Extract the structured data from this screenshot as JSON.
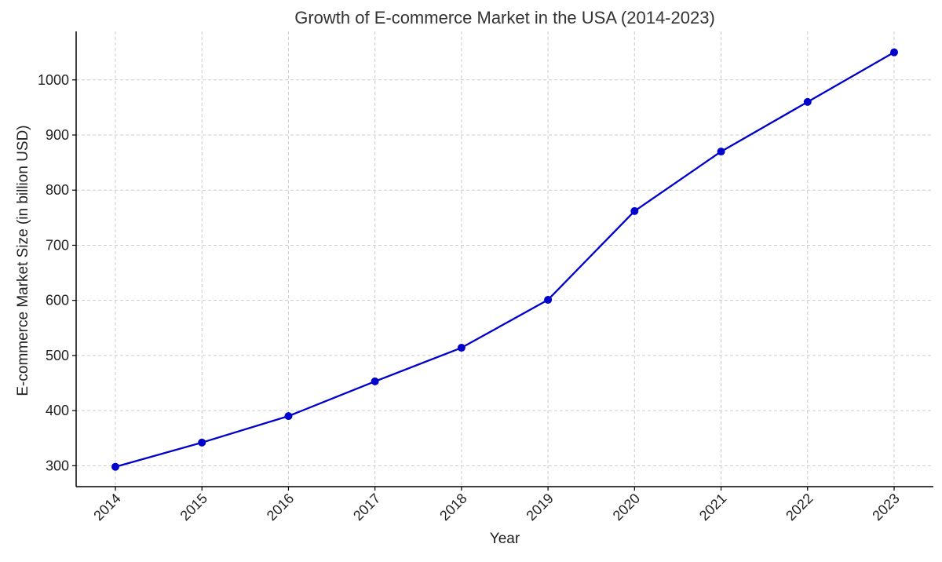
{
  "chart_data": {
    "type": "line",
    "title": "Growth of E-commerce Market in the USA (2014-2023)",
    "xlabel": "Year",
    "ylabel": "E-commerce Market Size (in billion USD)",
    "x": [
      "2014",
      "2015",
      "2016",
      "2017",
      "2018",
      "2019",
      "2020",
      "2021",
      "2022",
      "2023"
    ],
    "series": [
      {
        "values": [
          298,
          342,
          390,
          453,
          514,
          601,
          762,
          870,
          960,
          1050
        ],
        "color": "#0000cc"
      }
    ],
    "yticks": [
      300,
      400,
      500,
      600,
      700,
      800,
      900,
      1000
    ],
    "ylim": [
      262,
      1088
    ],
    "grid": true,
    "x_tick_rotation": -45
  }
}
